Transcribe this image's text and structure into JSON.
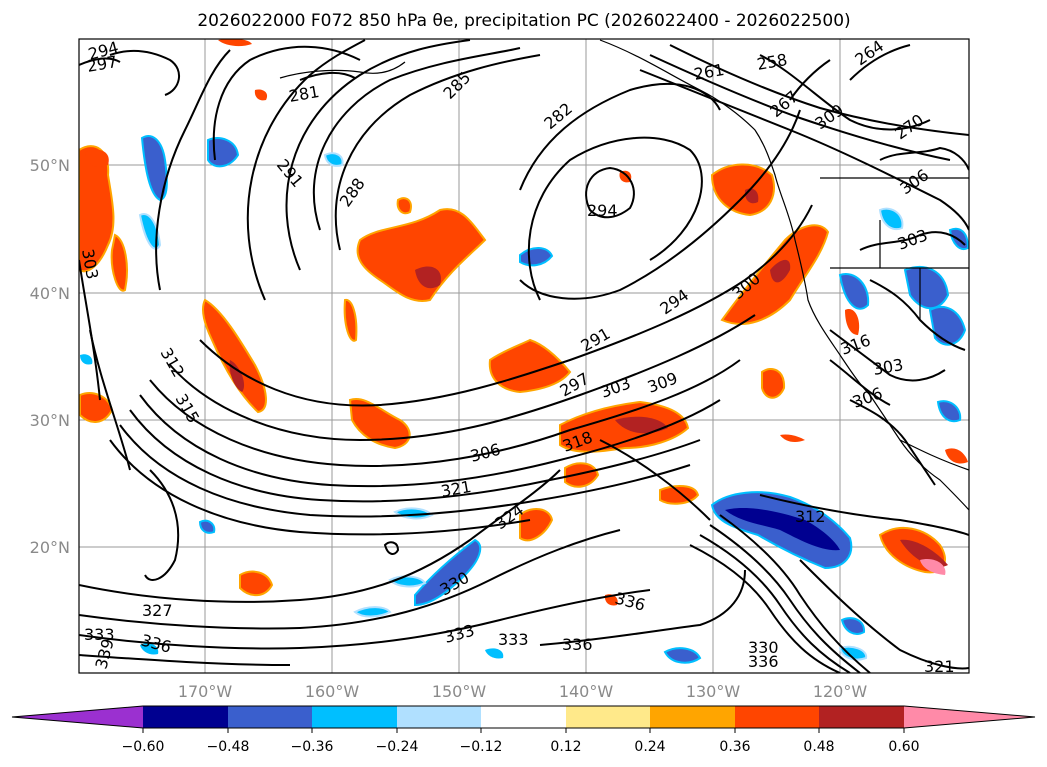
{
  "map": {
    "title": "2026022000 F072 850 hPa θe, precipitation PC (2026022400 - 2026022500)",
    "lat_labels": [
      "50°N",
      "40°N",
      "30°N",
      "20°N"
    ],
    "lon_labels": [
      "170°W",
      "160°W",
      "150°W",
      "140°W",
      "130°W",
      "120°W"
    ],
    "contour_labels": [
      "294",
      "297",
      "281",
      "285",
      "282",
      "261",
      "258",
      "264",
      "267",
      "270",
      "291",
      "288",
      "294",
      "303",
      "300",
      "303",
      "294",
      "291",
      "297",
      "303",
      "309",
      "306",
      "312",
      "315",
      "306",
      "318",
      "321",
      "324",
      "312",
      "330",
      "336",
      "327",
      "333",
      "336",
      "339",
      "333",
      "333",
      "336",
      "330",
      "336",
      "321",
      "316",
      "303",
      "309",
      "306"
    ]
  },
  "colorbar": {
    "tick_labels": [
      "−0.60",
      "−0.48",
      "−0.36",
      "−0.24",
      "−0.12",
      "0.12",
      "0.24",
      "0.36",
      "0.48",
      "0.60"
    ],
    "colors": [
      "#9b30d0",
      "#000090",
      "#3a5fcd",
      "#00bfff",
      "#b0e0ff",
      "#ffffff",
      "#ffe98a",
      "#ffa500",
      "#ff4500",
      "#b22222",
      "#ff8aa8"
    ]
  }
}
